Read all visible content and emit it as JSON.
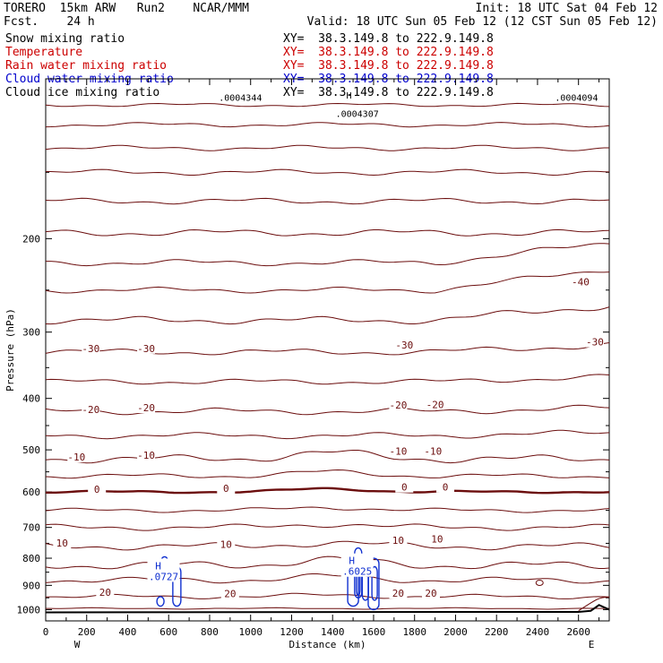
{
  "header": {
    "left_line1": "TORERO  15km ARW   Run2    NCAR/MMM",
    "left_line2": "Fcst.    24 h",
    "init": "Init: 18 UTC Sat 04 Feb 12",
    "valid": "Valid: 18 UTC Sun 05 Feb 12 (12 CST Sun 05 Feb 12)"
  },
  "fields": [
    {
      "name": "Snow mixing ratio",
      "xy": "XY=  38.3.149.8 to 222.9.149.8",
      "color": "#000000"
    },
    {
      "name": "Temperature",
      "xy": "XY=  38.3.149.8 to 222.9.149.8",
      "color": "#cc0000"
    },
    {
      "name": "Rain water mixing ratio",
      "xy": "XY=  38.3.149.8 to 222.9.149.8",
      "color": "#cc0000"
    },
    {
      "name": "Cloud water mixing ratio",
      "xy": "XY=  38.3.149.8 to 222.9.149.8",
      "color": "#0000cc"
    },
    {
      "name": "Cloud ice mixing ratio",
      "xy": "XY=  38.3.149.8 to 222.9.149.8",
      "color": "#000000"
    }
  ],
  "chart_data": {
    "type": "contour",
    "xlabel": "Distance (km)",
    "ylabel": "Pressure (hPa)",
    "xlim": [
      0,
      2750
    ],
    "ylim": [
      1050,
      100
    ],
    "x_ticks": [
      0,
      200,
      400,
      600,
      800,
      1000,
      1200,
      1400,
      1600,
      1800,
      2000,
      2200,
      2400,
      2600
    ],
    "y_ticks": [
      200,
      300,
      400,
      500,
      600,
      700,
      800,
      900,
      1000
    ],
    "x_end_labels": {
      "left": "W",
      "right": "E"
    },
    "temperature_contour_labels": [
      {
        "label": "-40",
        "x": 2610,
        "p": 245
      },
      {
        "label": "-30",
        "x": 220,
        "p": 327
      },
      {
        "label": "-30",
        "x": 490,
        "p": 327
      },
      {
        "label": "-30",
        "x": 1750,
        "p": 322
      },
      {
        "label": "-30",
        "x": 2680,
        "p": 318
      },
      {
        "label": "-20",
        "x": 220,
        "p": 426
      },
      {
        "label": "-20",
        "x": 490,
        "p": 423
      },
      {
        "label": "-20",
        "x": 1720,
        "p": 418
      },
      {
        "label": "-20",
        "x": 1900,
        "p": 417
      },
      {
        "label": "-10",
        "x": 150,
        "p": 524
      },
      {
        "label": "-10",
        "x": 490,
        "p": 520
      },
      {
        "label": "-10",
        "x": 1720,
        "p": 511
      },
      {
        "label": "-10",
        "x": 1890,
        "p": 511
      },
      {
        "label": "0",
        "x": 250,
        "p": 602
      },
      {
        "label": "0",
        "x": 880,
        "p": 600
      },
      {
        "label": "0",
        "x": 1750,
        "p": 597
      },
      {
        "label": "0",
        "x": 1950,
        "p": 597
      },
      {
        "label": "10",
        "x": 80,
        "p": 761
      },
      {
        "label": "10",
        "x": 880,
        "p": 765
      },
      {
        "label": "10",
        "x": 1720,
        "p": 751
      },
      {
        "label": "10",
        "x": 1910,
        "p": 747
      },
      {
        "label": "20",
        "x": 290,
        "p": 942
      },
      {
        "label": "20",
        "x": 900,
        "p": 948
      },
      {
        "label": "20",
        "x": 1720,
        "p": 946
      },
      {
        "label": "20",
        "x": 1880,
        "p": 946
      }
    ],
    "cloud_water_maxima": [
      {
        "symbol": "H",
        "value": ".0727",
        "x": 575,
        "p": 866
      },
      {
        "symbol": "H",
        "value": ".6025",
        "x": 1520,
        "p": 847
      }
    ],
    "top_annotations": [
      ".0004344",
      ".0004094",
      ".0004307",
      "H"
    ]
  }
}
